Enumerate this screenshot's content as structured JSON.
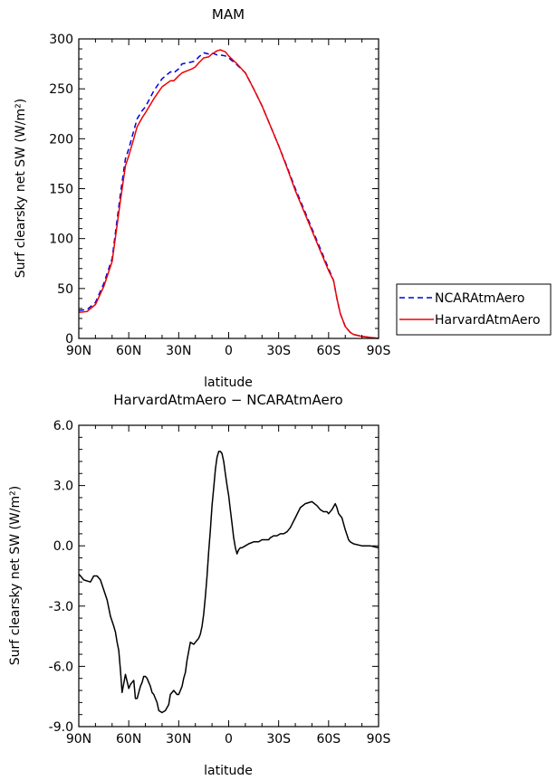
{
  "chart_data": [
    {
      "type": "line",
      "title": "MAM",
      "xlabel": "latitude",
      "ylabel": "Surf clearsky net SW (W/m²)",
      "xlim": [
        90,
        -90
      ],
      "ylim": [
        0,
        300
      ],
      "x_ticks": [
        90,
        60,
        30,
        0,
        -30,
        -60,
        -90
      ],
      "x_tick_labels": [
        "90N",
        "60N",
        "30N",
        "0",
        "30S",
        "60S",
        "90S"
      ],
      "y_ticks": [
        0,
        50,
        100,
        150,
        200,
        250,
        300
      ],
      "y_tick_labels": [
        "0",
        "50",
        "100",
        "150",
        "200",
        "250",
        "300"
      ],
      "legend_position": "right",
      "series": [
        {
          "name": "NCARAtmAero",
          "color": "#0000dd",
          "dash": "dashed",
          "x": [
            90,
            85,
            80,
            75,
            70,
            65,
            62,
            60,
            57,
            55,
            52,
            50,
            45,
            40,
            35,
            33,
            30,
            28,
            25,
            22,
            20,
            18,
            15,
            12,
            10,
            7,
            5,
            2,
            0,
            -5,
            -10,
            -15,
            -20,
            -25,
            -30,
            -35,
            -40,
            -45,
            -50,
            -55,
            -60,
            -63,
            -65,
            -67,
            -70,
            -73,
            -75,
            -80,
            -85,
            -90
          ],
          "y": [
            28,
            29,
            36,
            55,
            80,
            145,
            180,
            190,
            208,
            220,
            228,
            232,
            248,
            260,
            267,
            266,
            270,
            275,
            276,
            277,
            278,
            282,
            286,
            285,
            286,
            284,
            284,
            283,
            281,
            274,
            266,
            250,
            233,
            213,
            193,
            172,
            150,
            130,
            110,
            90,
            70,
            58,
            40,
            25,
            12,
            6,
            4,
            2,
            1,
            0
          ]
        },
        {
          "name": "HarvardAtmAero",
          "color": "#ee0000",
          "dash": "solid",
          "x": [
            90,
            85,
            80,
            75,
            70,
            65,
            62,
            60,
            57,
            55,
            52,
            50,
            45,
            40,
            35,
            33,
            30,
            28,
            25,
            22,
            20,
            18,
            15,
            12,
            10,
            7,
            5,
            2,
            0,
            -5,
            -10,
            -15,
            -20,
            -25,
            -30,
            -35,
            -40,
            -45,
            -50,
            -55,
            -60,
            -63,
            -65,
            -67,
            -70,
            -73,
            -75,
            -80,
            -85,
            -90
          ],
          "y": [
            26,
            27,
            34,
            52,
            77,
            138,
            173,
            183,
            200,
            212,
            221,
            226,
            240,
            252,
            258,
            258,
            263,
            266,
            268,
            270,
            272,
            276,
            281,
            282,
            285,
            288,
            289,
            287,
            283,
            275,
            266,
            250,
            233,
            213,
            193,
            171,
            148,
            128,
            108,
            88,
            68,
            58,
            40,
            25,
            12,
            6,
            4,
            2,
            1,
            0
          ]
        }
      ]
    },
    {
      "type": "line",
      "title": "HarvardAtmAero − NCARAtmAero",
      "xlabel": "latitude",
      "ylabel": "Surf clearsky net SW (W/m²)",
      "xlim": [
        90,
        -90
      ],
      "ylim": [
        -9.0,
        6.0
      ],
      "x_ticks": [
        90,
        60,
        30,
        0,
        -30,
        -60,
        -90
      ],
      "x_tick_labels": [
        "90N",
        "60N",
        "30N",
        "0",
        "30S",
        "60S",
        "90S"
      ],
      "y_ticks": [
        -9,
        -6,
        -3,
        0,
        3,
        6
      ],
      "y_tick_labels": [
        "-9.0",
        "-6.0",
        "-3.0",
        "0.0",
        "3.0",
        "6.0"
      ],
      "series": [
        {
          "color": "#000000",
          "dash": "solid",
          "x": [
            90,
            87,
            83,
            81,
            79,
            77,
            75,
            73,
            71,
            69,
            68,
            67,
            66,
            65,
            64,
            62,
            60,
            59,
            58,
            57,
            56,
            55,
            53,
            52,
            51,
            50,
            49,
            47,
            46,
            45,
            43,
            42,
            40,
            38,
            36,
            35,
            33,
            31,
            30,
            28,
            27,
            26,
            25,
            23,
            21,
            20,
            19,
            18,
            17,
            16,
            15,
            14,
            13,
            12,
            11,
            10,
            9,
            8,
            7,
            6,
            5,
            4,
            3,
            2,
            1,
            0,
            -1,
            -2,
            -3,
            -4,
            -5,
            -6,
            -7,
            -8,
            -10,
            -12,
            -15,
            -18,
            -20,
            -22,
            -24,
            -25,
            -27,
            -29,
            -31,
            -33,
            -35,
            -37,
            -40,
            -43,
            -46,
            -50,
            -53,
            -55,
            -57,
            -59,
            -60,
            -62,
            -64,
            -65,
            -66,
            -68,
            -70,
            -72,
            -73,
            -75,
            -80,
            -85,
            -90
          ],
          "y": [
            -1.4,
            -1.7,
            -1.8,
            -1.5,
            -1.5,
            -1.7,
            -2.2,
            -2.7,
            -3.5,
            -4.0,
            -4.3,
            -4.8,
            -5.2,
            -6.2,
            -7.3,
            -6.4,
            -7.1,
            -6.9,
            -6.8,
            -6.7,
            -7.6,
            -7.6,
            -7.0,
            -6.8,
            -6.5,
            -6.5,
            -6.6,
            -7.0,
            -7.3,
            -7.4,
            -7.8,
            -8.2,
            -8.3,
            -8.2,
            -7.9,
            -7.4,
            -7.2,
            -7.4,
            -7.4,
            -7.0,
            -6.6,
            -6.3,
            -5.7,
            -4.8,
            -4.9,
            -4.8,
            -4.7,
            -4.6,
            -4.4,
            -4.0,
            -3.4,
            -2.5,
            -1.5,
            -0.3,
            0.8,
            2.0,
            2.9,
            3.8,
            4.4,
            4.7,
            4.7,
            4.6,
            4.2,
            3.6,
            3.0,
            2.5,
            1.8,
            1.1,
            0.4,
            -0.1,
            -0.4,
            -0.2,
            -0.1,
            -0.1,
            0.0,
            0.1,
            0.2,
            0.2,
            0.3,
            0.3,
            0.3,
            0.4,
            0.5,
            0.5,
            0.6,
            0.6,
            0.7,
            0.9,
            1.4,
            1.9,
            2.1,
            2.2,
            2.0,
            1.8,
            1.7,
            1.7,
            1.6,
            1.8,
            2.1,
            1.9,
            1.6,
            1.4,
            0.8,
            0.3,
            0.2,
            0.1,
            0.0,
            0.0,
            -0.1
          ]
        }
      ]
    }
  ]
}
